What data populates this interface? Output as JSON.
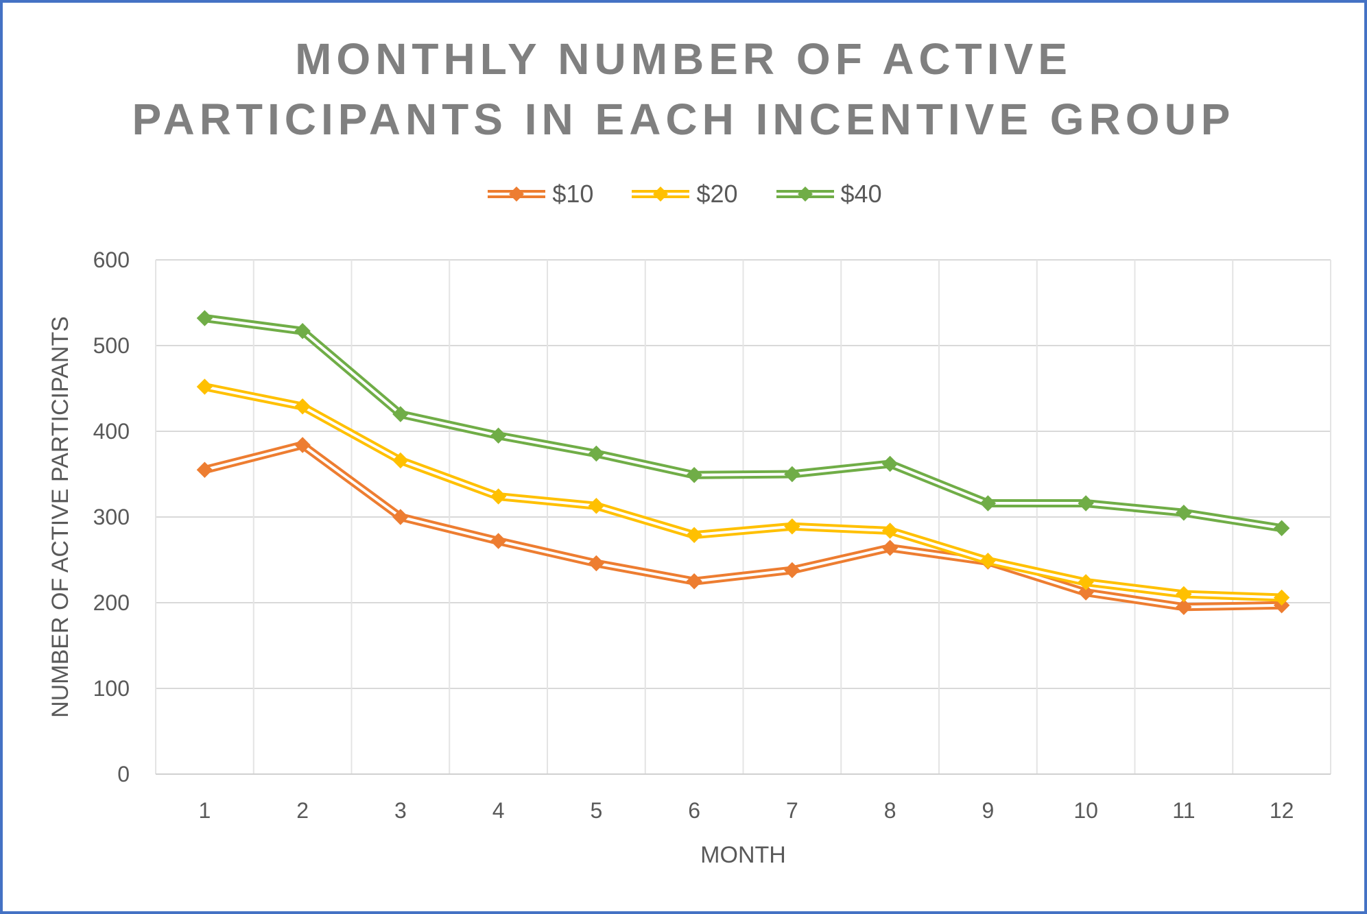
{
  "chart_data": {
    "type": "line",
    "title_lines": [
      "MONTHLY NUMBER OF ACTIVE",
      "PARTICIPANTS IN EACH INCENTIVE GROUP"
    ],
    "xlabel": "MONTH",
    "ylabel": "NUMBER OF ACTIVE PARTICIPANTS",
    "categories": [
      "1",
      "2",
      "3",
      "4",
      "5",
      "6",
      "7",
      "8",
      "9",
      "10",
      "11",
      "12"
    ],
    "ylim": [
      0,
      600
    ],
    "yticks": [
      "0",
      "100",
      "200",
      "300",
      "400",
      "500",
      "600"
    ],
    "grid": true,
    "legend_position": "top",
    "marker": "diamond",
    "series": [
      {
        "name": "$10",
        "color": "#ED7D31",
        "values": [
          355,
          384,
          300,
          272,
          246,
          225,
          238,
          264,
          248,
          212,
          195,
          197
        ]
      },
      {
        "name": "$20",
        "color": "#FFC000",
        "values": [
          452,
          429,
          366,
          324,
          313,
          279,
          289,
          284,
          249,
          224,
          210,
          206
        ]
      },
      {
        "name": "$40",
        "color": "#70AD47",
        "values": [
          532,
          517,
          420,
          395,
          374,
          349,
          350,
          362,
          316,
          316,
          305,
          287
        ]
      }
    ]
  }
}
